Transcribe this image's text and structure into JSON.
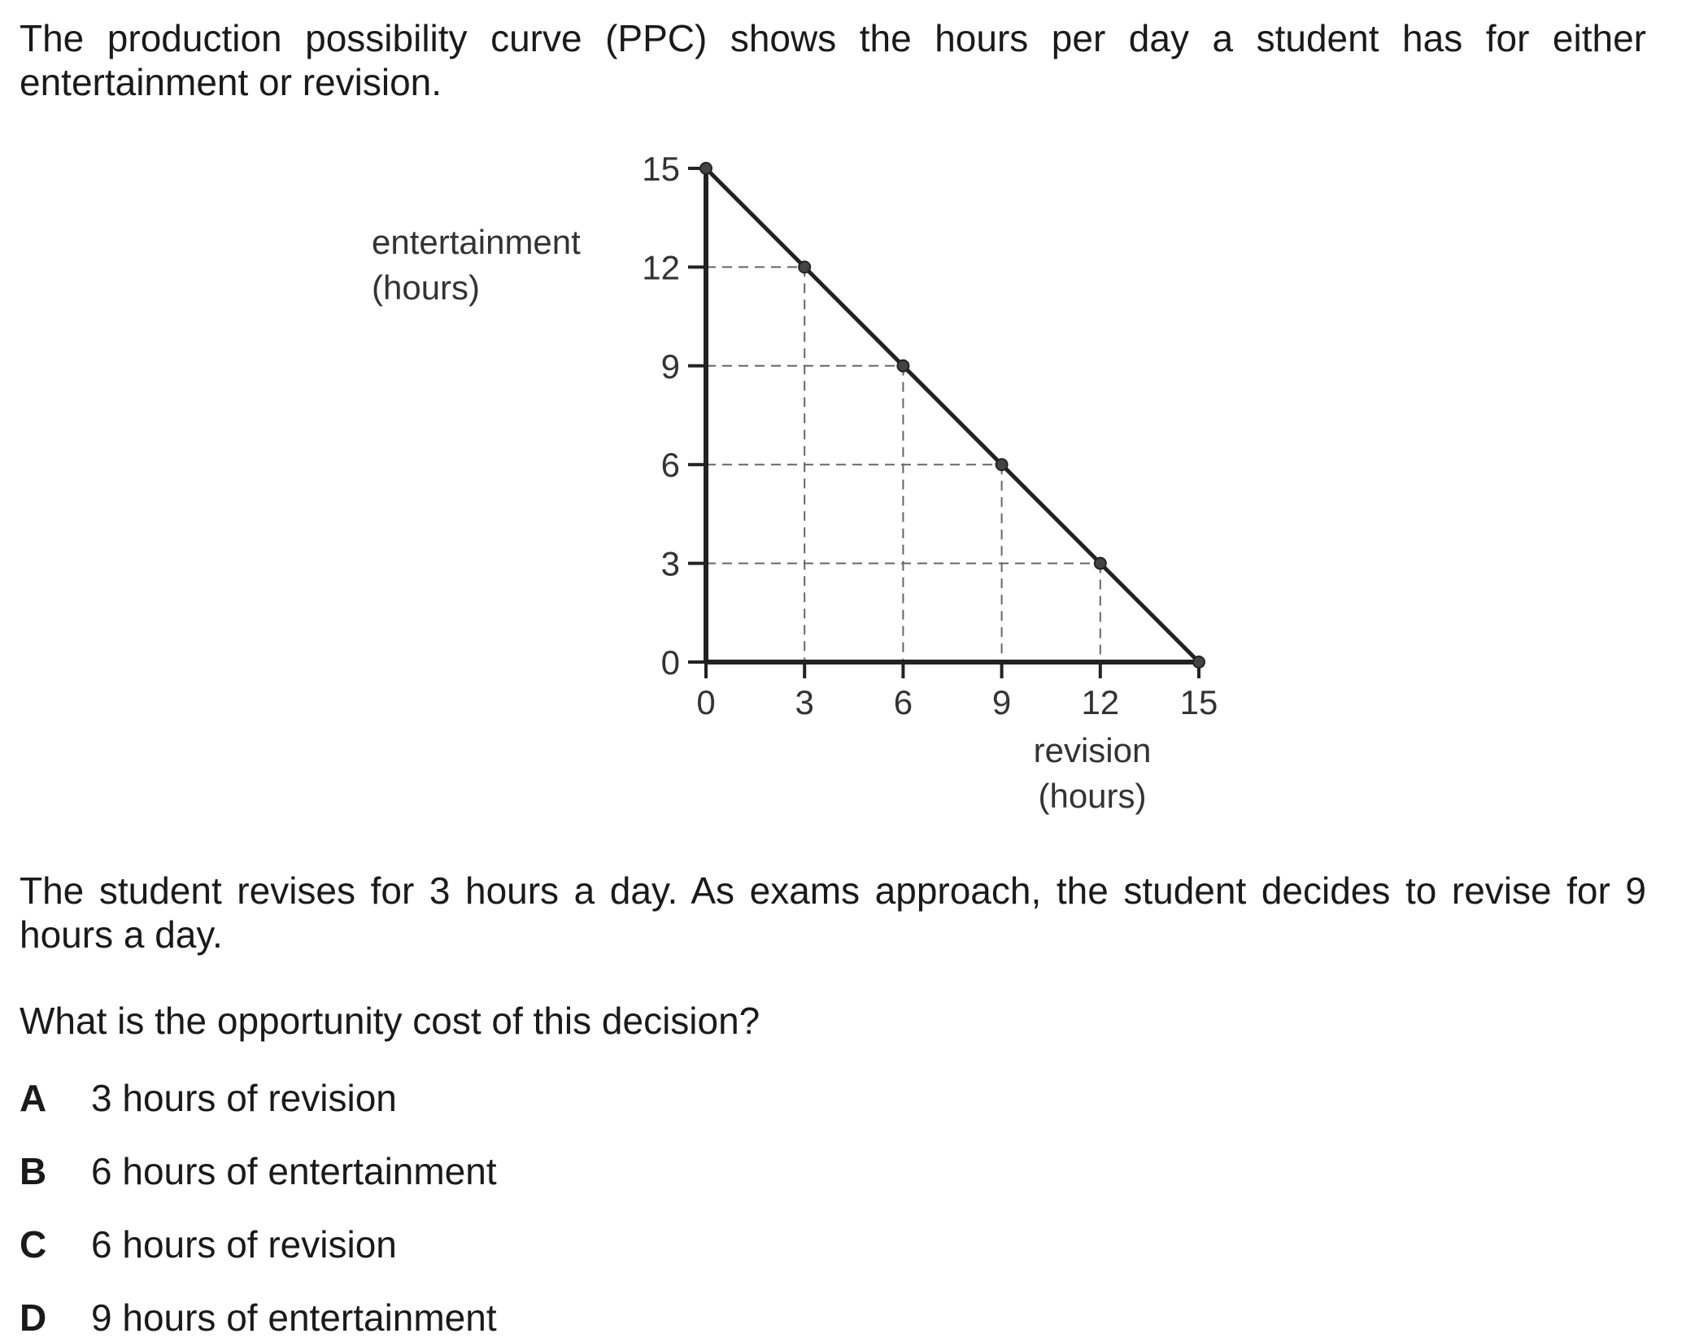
{
  "intro_text": "The production possibility curve (PPC) shows the hours per day a student has for either entertainment or revision.",
  "scenario_text": "The student revises for 3 hours a day. As exams approach, the student decides to revise for 9 hours a day.",
  "question_text": "What is the opportunity cost of this decision?",
  "options": [
    {
      "letter": "A",
      "text": "3 hours of revision"
    },
    {
      "letter": "B",
      "text": "6 hours of entertainment"
    },
    {
      "letter": "C",
      "text": "6 hours of revision"
    },
    {
      "letter": "D",
      "text": "9 hours of entertainment"
    }
  ],
  "chart_data": {
    "type": "line",
    "title": "",
    "xlabel_lines": [
      "revision",
      "(hours)"
    ],
    "ylabel_lines": [
      "entertainment",
      "(hours)"
    ],
    "xlim": [
      0,
      15
    ],
    "ylim": [
      0,
      15
    ],
    "x_ticks": [
      0,
      3,
      6,
      9,
      12,
      15
    ],
    "y_ticks": [
      0,
      3,
      6,
      9,
      12,
      15
    ],
    "grid": "dashed guides from each marked point to both axes",
    "points": [
      {
        "x": 0,
        "y": 15
      },
      {
        "x": 3,
        "y": 12
      },
      {
        "x": 6,
        "y": 9
      },
      {
        "x": 9,
        "y": 6
      },
      {
        "x": 12,
        "y": 3
      },
      {
        "x": 15,
        "y": 0
      }
    ],
    "line_color": "#222222"
  }
}
